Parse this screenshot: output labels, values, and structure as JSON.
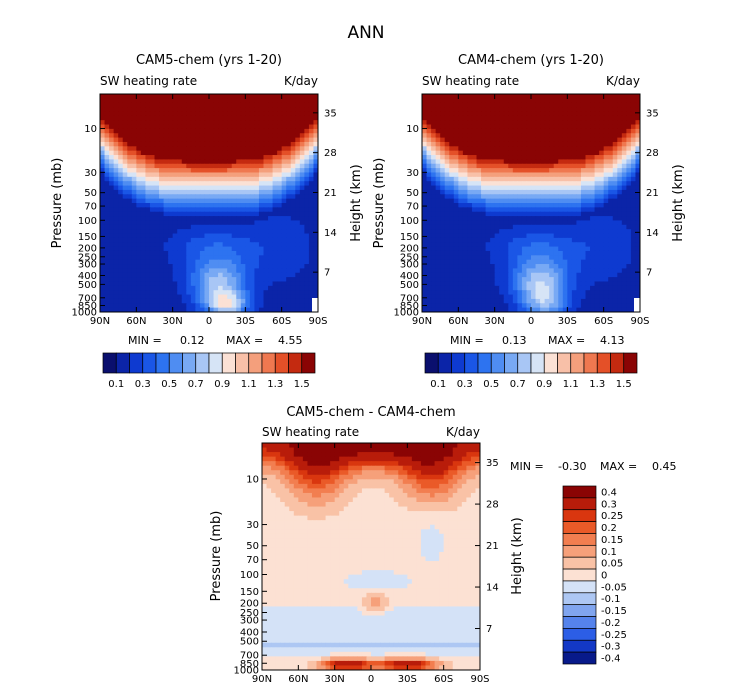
{
  "figure_title": "ANN",
  "chart_data": [
    {
      "type": "heatmap",
      "title": "CAM5-chem (yrs 1-20)",
      "subtitle_left": "SW heating rate",
      "subtitle_right": "K/day",
      "xlabel": "",
      "ylabel_left": "Pressure (mb)",
      "ylabel_right": "Height (km)",
      "x_ticks": [
        "90N",
        "60N",
        "30N",
        "0",
        "30S",
        "60S",
        "90S"
      ],
      "y_ticks_pressure": [
        "10",
        "30",
        "50",
        "70",
        "100",
        "150",
        "200",
        "250",
        "300",
        "400",
        "500",
        "700",
        "850",
        "1000"
      ],
      "y_ticks_height": [
        "35",
        "28",
        "21",
        "14",
        "7"
      ],
      "min_label": "MIN =",
      "min_value": "0.12",
      "max_label": "MAX =",
      "max_value": "4.55",
      "min": 0.12,
      "max": 4.55,
      "colorbar_ticks": [
        "0.1",
        "0.3",
        "0.5",
        "0.7",
        "0.9",
        "1.1",
        "1.3",
        "1.5"
      ]
    },
    {
      "type": "heatmap",
      "title": "CAM4-chem (yrs 1-20)",
      "subtitle_left": "SW heating rate",
      "subtitle_right": "K/day",
      "xlabel": "",
      "ylabel_left": "Pressure (mb)",
      "ylabel_right": "Height (km)",
      "x_ticks": [
        "90N",
        "60N",
        "30N",
        "0",
        "30S",
        "60S",
        "90S"
      ],
      "y_ticks_pressure": [
        "10",
        "30",
        "50",
        "70",
        "100",
        "150",
        "200",
        "250",
        "300",
        "400",
        "500",
        "700",
        "850",
        "1000"
      ],
      "y_ticks_height": [
        "35",
        "28",
        "21",
        "14",
        "7"
      ],
      "min_label": "MIN =",
      "min_value": "0.13",
      "max_label": "MAX =",
      "max_value": "4.13",
      "min": 0.13,
      "max": 4.13,
      "colorbar_ticks": [
        "0.1",
        "0.3",
        "0.5",
        "0.7",
        "0.9",
        "1.1",
        "1.3",
        "1.5"
      ]
    },
    {
      "type": "heatmap",
      "title": "CAM5-chem - CAM4-chem",
      "subtitle_left": "SW heating rate",
      "subtitle_right": "K/day",
      "xlabel": "",
      "ylabel_left": "Pressure (mb)",
      "ylabel_right": "Height (km)",
      "x_ticks": [
        "90N",
        "60N",
        "30N",
        "0",
        "30S",
        "60S",
        "90S"
      ],
      "y_ticks_pressure": [
        "10",
        "30",
        "50",
        "70",
        "100",
        "150",
        "200",
        "250",
        "300",
        "400",
        "500",
        "700",
        "850",
        "1000"
      ],
      "y_ticks_height": [
        "35",
        "28",
        "21",
        "14",
        "7"
      ],
      "min_label": "MIN =",
      "min_value": "-0.30",
      "max_label": "MAX =",
      "max_value": "0.45",
      "min": -0.3,
      "max": 0.45,
      "colorbar_ticks": [
        "0.4",
        "0.3",
        "0.25",
        "0.2",
        "0.15",
        "0.1",
        "0.05",
        "0",
        "-0.05",
        "-0.1",
        "-0.15",
        "-0.2",
        "-0.25",
        "-0.3",
        "-0.4"
      ]
    }
  ]
}
